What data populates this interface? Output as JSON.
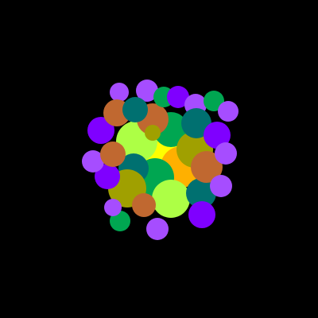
{
  "background": "#000000",
  "palette": {
    "yellow": "#FFFF00",
    "orange": "#FFB000",
    "lime": "#ADFF45",
    "green": "#00A651",
    "teal": "#007070",
    "olive": "#A0A000",
    "brown": "#C06830",
    "violet": "#7F00FF",
    "lavender": "#A64DFF"
  }
}
